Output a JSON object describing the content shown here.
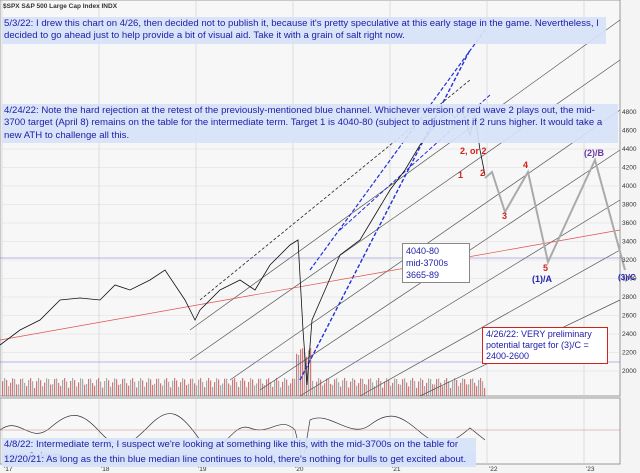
{
  "header": {
    "title": "$SPX S&P 500 Large Cap Index INDX"
  },
  "annotations": [
    "5/3/22:  I drew this chart on 4/26, then decided not to publish it, because it's pretty speculative at this early stage in the game.  Nevertheless, I decided to go ahead just to help provide a bit of visual aid.  Take it with a grain of salt right now.",
    "4/24/22:  Note the hard rejection at the retest of the previously-mentioned blue channel.  Whichever version of red wave 2 plays out, the mid-3700 target (April 8) remains on the table for the intermediate term.  Target 1 is 4040-80 (subject to adjustment if 2 runs higher.   It would take a new ATH to challenge all this.",
    "4/8/22:  Intermediate term, I suspect we're looking at something like this, with the mid-3700s on the table for wave 3 down.",
    "12/20/21:  As long as the thin blue median line continues to hold, there's nothing for bulls to get excited about."
  ],
  "targets": [
    "4040-80",
    "mid-3700s",
    "3665-89"
  ],
  "target_note": "4/26/22: VERY preliminary potential target for (3)/C = 2400-2600",
  "waves": [
    "2, or 2",
    "1",
    "2",
    "3",
    "4",
    "5",
    "(1)/A",
    "(2)/B",
    "(3)/C"
  ],
  "price_axis": [
    "4800",
    "4600",
    "4400",
    "4200",
    "4000",
    "3800",
    "3600",
    "3400",
    "3200",
    "3000",
    "2800",
    "2600",
    "2400",
    "2200",
    "2000"
  ],
  "time_axis": [
    "'17",
    "'18",
    "'19",
    "'20",
    "'21",
    "'22",
    "'23"
  ]
}
